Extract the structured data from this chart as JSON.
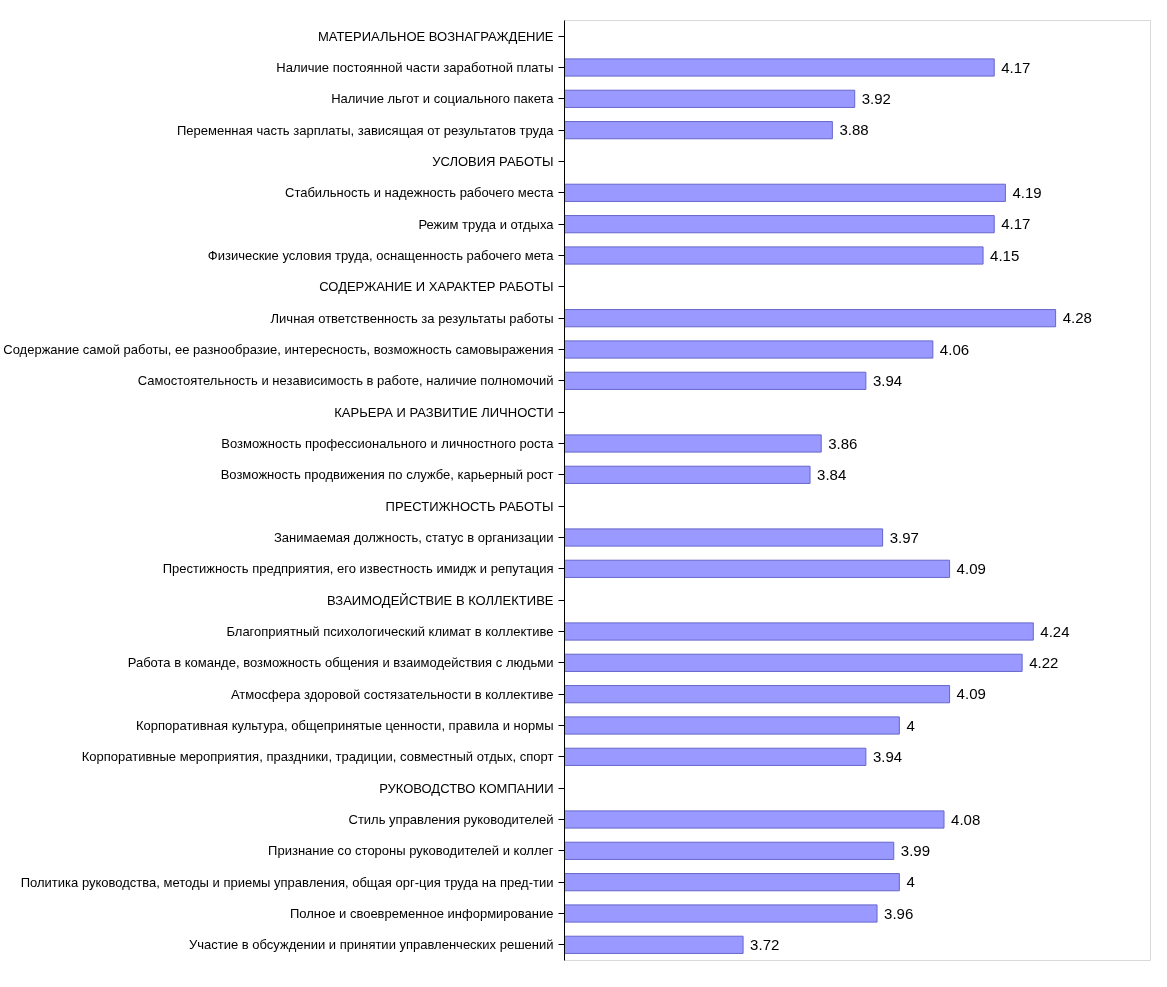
{
  "chart_data": {
    "type": "bar",
    "orientation": "horizontal",
    "data_labels": true,
    "tick_labels": "y",
    "color": "#9999ff",
    "xlim": [
      3.4,
      4.45
    ],
    "categories": [
      "МАТЕРИАЛЬНОЕ ВОЗНАГРАЖДЕНИЕ",
      "Наличие постоянной части заработной платы",
      "Наличие льгот и социального пакета",
      "Переменная часть зарплаты, зависящая от результатов труда",
      "УСЛОВИЯ РАБОТЫ",
      "Стабильность и надежность рабочего места",
      "Режим труда и отдыха",
      "Физические условия труда, оснащенность рабочего мета",
      "СОДЕРЖАНИЕ И ХАРАКТЕР РАБОТЫ",
      "Личная ответственность за результаты работы",
      "Содержание самой работы, ее разнообразие, интересность, возможность самовыражения",
      "Самостоятельность и независимость в работе, наличие полномочий",
      "КАРЬЕРА И РАЗВИТИЕ ЛИЧНОСТИ",
      "Возможность профессионального и личностного роста",
      "Возможность продвижения по службе, карьерный рост",
      "ПРЕСТИЖНОСТЬ РАБОТЫ",
      "Занимаемая должность, статус в организации",
      "Престижность предприятия, его известность имидж и репутация",
      "ВЗАИМОДЕЙСТВИЕ В КОЛЛЕКТИВЕ",
      "Благоприятный психологический климат в коллективе",
      "Работа в команде, возможность общения и взаимодействия с людьми",
      "Атмосфера здоровой состязательности в коллективе",
      "Корпоративная культура, общепринятые ценности, правила и нормы",
      "Корпоративные мероприятия, праздники, традиции, совместный отдых, спорт",
      "РУКОВОДСТВО КОМПАНИИ",
      "Стиль управления руководителей",
      "Признание со стороны руководителей и коллег",
      "Политика руководства, методы и приемы управления, общая орг-ция труда на пред-тии",
      "Полное и своевременное информирование",
      "Участие в обсуждении и принятии управленческих решений"
    ],
    "values": [
      null,
      4.17,
      3.92,
      3.88,
      null,
      4.19,
      4.17,
      4.15,
      null,
      4.28,
      4.06,
      3.94,
      null,
      3.86,
      3.84,
      null,
      3.97,
      4.09,
      null,
      4.24,
      4.22,
      4.09,
      4,
      3.94,
      null,
      4.08,
      3.99,
      4,
      3.96,
      3.72
    ]
  }
}
